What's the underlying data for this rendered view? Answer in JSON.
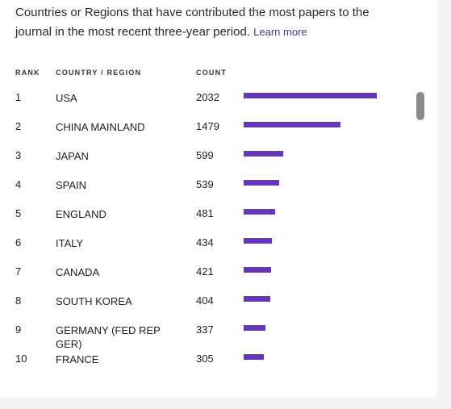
{
  "intro": {
    "text": "Countries or Regions that have contributed the most papers to the journal in the most recent three-year period.",
    "learn_more": "Learn more"
  },
  "table": {
    "headers": {
      "rank": "RANK",
      "country": "COUNTRY / REGION",
      "count": "COUNT"
    },
    "bar_color": "#6638b8",
    "max_count": 2032,
    "rows": [
      {
        "rank": "1",
        "country": "USA",
        "count": 2032
      },
      {
        "rank": "2",
        "country": "CHINA MAINLAND",
        "count": 1479
      },
      {
        "rank": "3",
        "country": "JAPAN",
        "count": 599
      },
      {
        "rank": "4",
        "country": "SPAIN",
        "count": 539
      },
      {
        "rank": "5",
        "country": "ENGLAND",
        "count": 481
      },
      {
        "rank": "6",
        "country": "ITALY",
        "count": 434
      },
      {
        "rank": "7",
        "country": "CANADA",
        "count": 421
      },
      {
        "rank": "8",
        "country": "SOUTH KOREA",
        "count": 404
      },
      {
        "rank": "9",
        "country": "GERMANY (FED REP GER)",
        "count": 337
      },
      {
        "rank": "10",
        "country": "FRANCE",
        "count": 305
      }
    ]
  }
}
